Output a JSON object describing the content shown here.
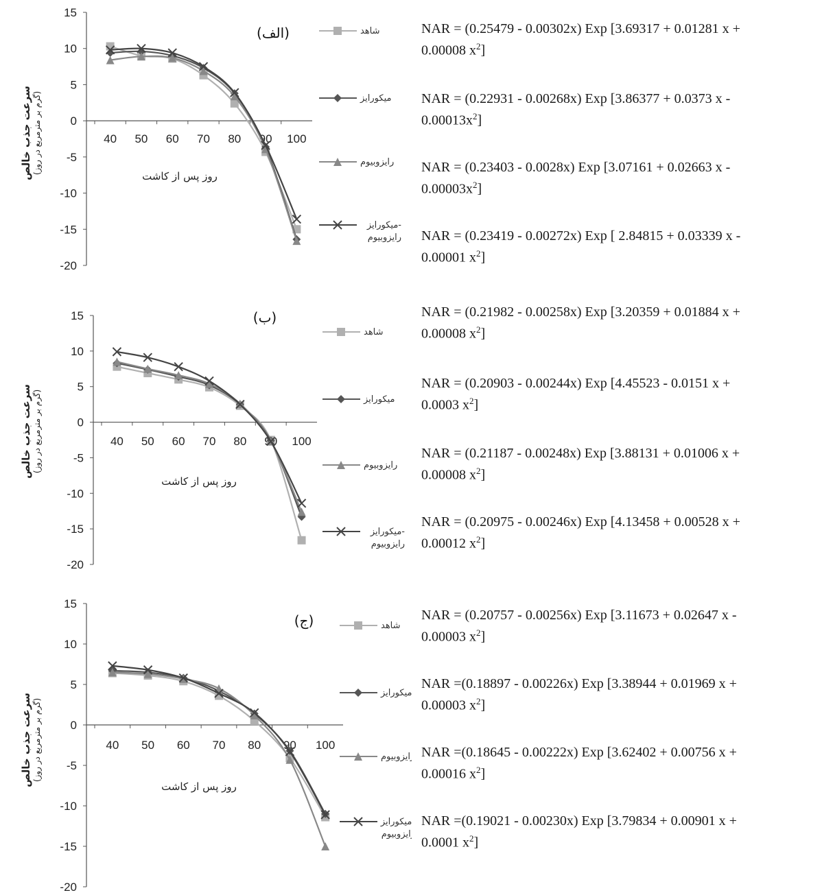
{
  "chart_data": [
    {
      "type": "line",
      "title": "(الف)",
      "xlabel": "روز پس از کاشت",
      "ylabel": "سرعت جذب خالص",
      "ylabel_unit": "(گرم بر مترمربع در روز)",
      "x": [
        40,
        50,
        60,
        70,
        80,
        90,
        100
      ],
      "xlim": [
        35,
        105
      ],
      "ylim": [
        -20,
        15
      ],
      "yticks": [
        15,
        10,
        5,
        0,
        -5,
        -10,
        -15,
        -20
      ],
      "series": [
        {
          "name": "شاهد",
          "marker": "square",
          "color": "#b0b0b0",
          "values": [
            10.3,
            9.0,
            8.6,
            6.3,
            2.4,
            -4.3,
            -15.0
          ]
        },
        {
          "name": "میکورایز",
          "marker": "diamond",
          "color": "#555555",
          "values": [
            9.4,
            9.6,
            9.0,
            7.3,
            3.8,
            -3.6,
            -16.4
          ]
        },
        {
          "name": "رایزوبیوم",
          "marker": "triangle",
          "color": "#888888",
          "values": [
            8.4,
            8.9,
            8.7,
            6.9,
            3.4,
            -3.9,
            -16.6
          ]
        },
        {
          "name": "میکورایز- رایزوبیوم",
          "marker": "x",
          "color": "#444444",
          "values": [
            9.8,
            10.0,
            9.4,
            7.5,
            3.9,
            -3.4,
            -13.6
          ]
        }
      ],
      "equations": [
        {
          "line1": "NAR = (0.25479  - 0.00302x) Exp [3.69317 + 0.01281 x +",
          "line2": "0.00008 x",
          "sup": "2",
          "end": "]"
        },
        {
          "line1": "NAR = (0.22931 - 0.00268x) Exp [3.86377 + 0.0373 x -",
          "line2": "0.00013x",
          "sup": "2",
          "end": "]"
        },
        {
          "line1": "NAR = (0.23403  - 0.0028x) Exp [3.07161 + 0.02663 x -",
          "line2": "0.00003x",
          "sup": "2",
          "end": "]"
        },
        {
          "line1": "NAR = (0.23419  - 0.00272x) Exp [ 2.84815 + 0.03339 x -",
          "line2": "0.00001 x",
          "sup": "2",
          "end": "]"
        }
      ]
    },
    {
      "type": "line",
      "title": "(ب)",
      "xlabel": "روز پس از کاشت",
      "ylabel": "سرعت جذب خالص",
      "ylabel_unit": "(گرم بر مترمربع در روز)",
      "x": [
        40,
        50,
        60,
        70,
        80,
        90,
        100
      ],
      "xlim": [
        35,
        105
      ],
      "ylim": [
        -20,
        15
      ],
      "yticks": [
        15,
        10,
        5,
        0,
        -5,
        -10,
        -15,
        -20
      ],
      "series": [
        {
          "name": "شاهد",
          "marker": "square",
          "color": "#b0b0b0",
          "values": [
            7.8,
            6.9,
            6.0,
            4.9,
            2.3,
            -2.5,
            -16.6
          ]
        },
        {
          "name": "میکورایز",
          "marker": "diamond",
          "color": "#555555",
          "values": [
            8.3,
            7.4,
            6.4,
            5.2,
            2.5,
            -2.6,
            -13.3
          ]
        },
        {
          "name": "رایزوبیوم",
          "marker": "triangle",
          "color": "#888888",
          "values": [
            8.5,
            7.5,
            6.6,
            5.4,
            2.6,
            -2.7,
            -12.6
          ]
        },
        {
          "name": "میکورایز- رایزوبیوم",
          "marker": "x",
          "color": "#444444",
          "values": [
            9.9,
            9.1,
            7.8,
            5.8,
            2.5,
            -2.7,
            -11.4
          ]
        }
      ],
      "equations": [
        {
          "line1": "NAR = (0.21982 - 0.00258x) Exp [3.20359 + 0.01884 x +",
          "line2": "0.00008 x",
          "sup": "2",
          "end": "]"
        },
        {
          "line1": "NAR = (0.20903  - 0.00244x) Exp [4.45523  - 0.0151 x +",
          "line2": "0.0003 x",
          "sup": "2",
          "end": "]"
        },
        {
          "line1": "NAR = (0.21187  - 0.00248x) Exp [3.88131 + 0.01006 x +",
          "line2": "0.00008 x",
          "sup": "2",
          "end": "]"
        },
        {
          "line1": "NAR = (0.20975 - 0.00246x) Exp [4.13458 + 0.00528 x +",
          "line2": "0.00012 x",
          "sup": "2",
          "end": "]"
        }
      ]
    },
    {
      "type": "line",
      "title": "(ج)",
      "xlabel": "روز پس از کاشت",
      "ylabel": "سرعت جذب خالص",
      "ylabel_unit": "(گرم بر مترمربع در روز)",
      "x": [
        40,
        50,
        60,
        70,
        80,
        90,
        100
      ],
      "xlim": [
        35,
        105
      ],
      "ylim": [
        -20,
        15
      ],
      "yticks": [
        15,
        10,
        5,
        0,
        -5,
        -10,
        -15,
        -20
      ],
      "series": [
        {
          "name": "شاهد",
          "marker": "square",
          "color": "#b0b0b0",
          "values": [
            6.4,
            6.1,
            5.4,
            3.6,
            0.5,
            -4.1,
            -11.4
          ]
        },
        {
          "name": "میکورایز",
          "marker": "diamond",
          "color": "#555555",
          "values": [
            6.7,
            6.5,
            5.8,
            4.2,
            1.4,
            -3.2,
            -11.0
          ]
        },
        {
          "name": "رایزوبیوم",
          "marker": "triangle",
          "color": "#888888",
          "values": [
            6.5,
            6.3,
            5.7,
            4.5,
            1.2,
            -4.3,
            -15.0
          ]
        },
        {
          "name": "میکورایز- رایزوبیوم",
          "marker": "x",
          "color": "#444444",
          "values": [
            7.3,
            6.8,
            5.8,
            3.9,
            1.5,
            -3.3,
            -11.1
          ]
        }
      ],
      "equations": [
        {
          "line1": "NAR = (0.20757  - 0.00256x) Exp [3.11673 + 0.02647 x -",
          "line2": "0.00003 x",
          "sup": "2",
          "end": "]"
        },
        {
          "line1": "NAR =(0.18897  - 0.00226x) Exp [3.38944 + 0.01969 x +",
          "line2": "0.00003 x",
          "sup": "2",
          "end": "]"
        },
        {
          "line1": "NAR =(0.18645 - 0.00222x) Exp [3.62402 + 0.00756  x +",
          "line2": "0.00016 x",
          "sup": "2",
          "end": "]"
        },
        {
          "line1": "NAR =(0.19021 - 0.00230x) Exp [3.79834 + 0.00901 x +",
          "line2": "0.0001 x",
          "sup": "2",
          "end": "]"
        }
      ]
    }
  ]
}
